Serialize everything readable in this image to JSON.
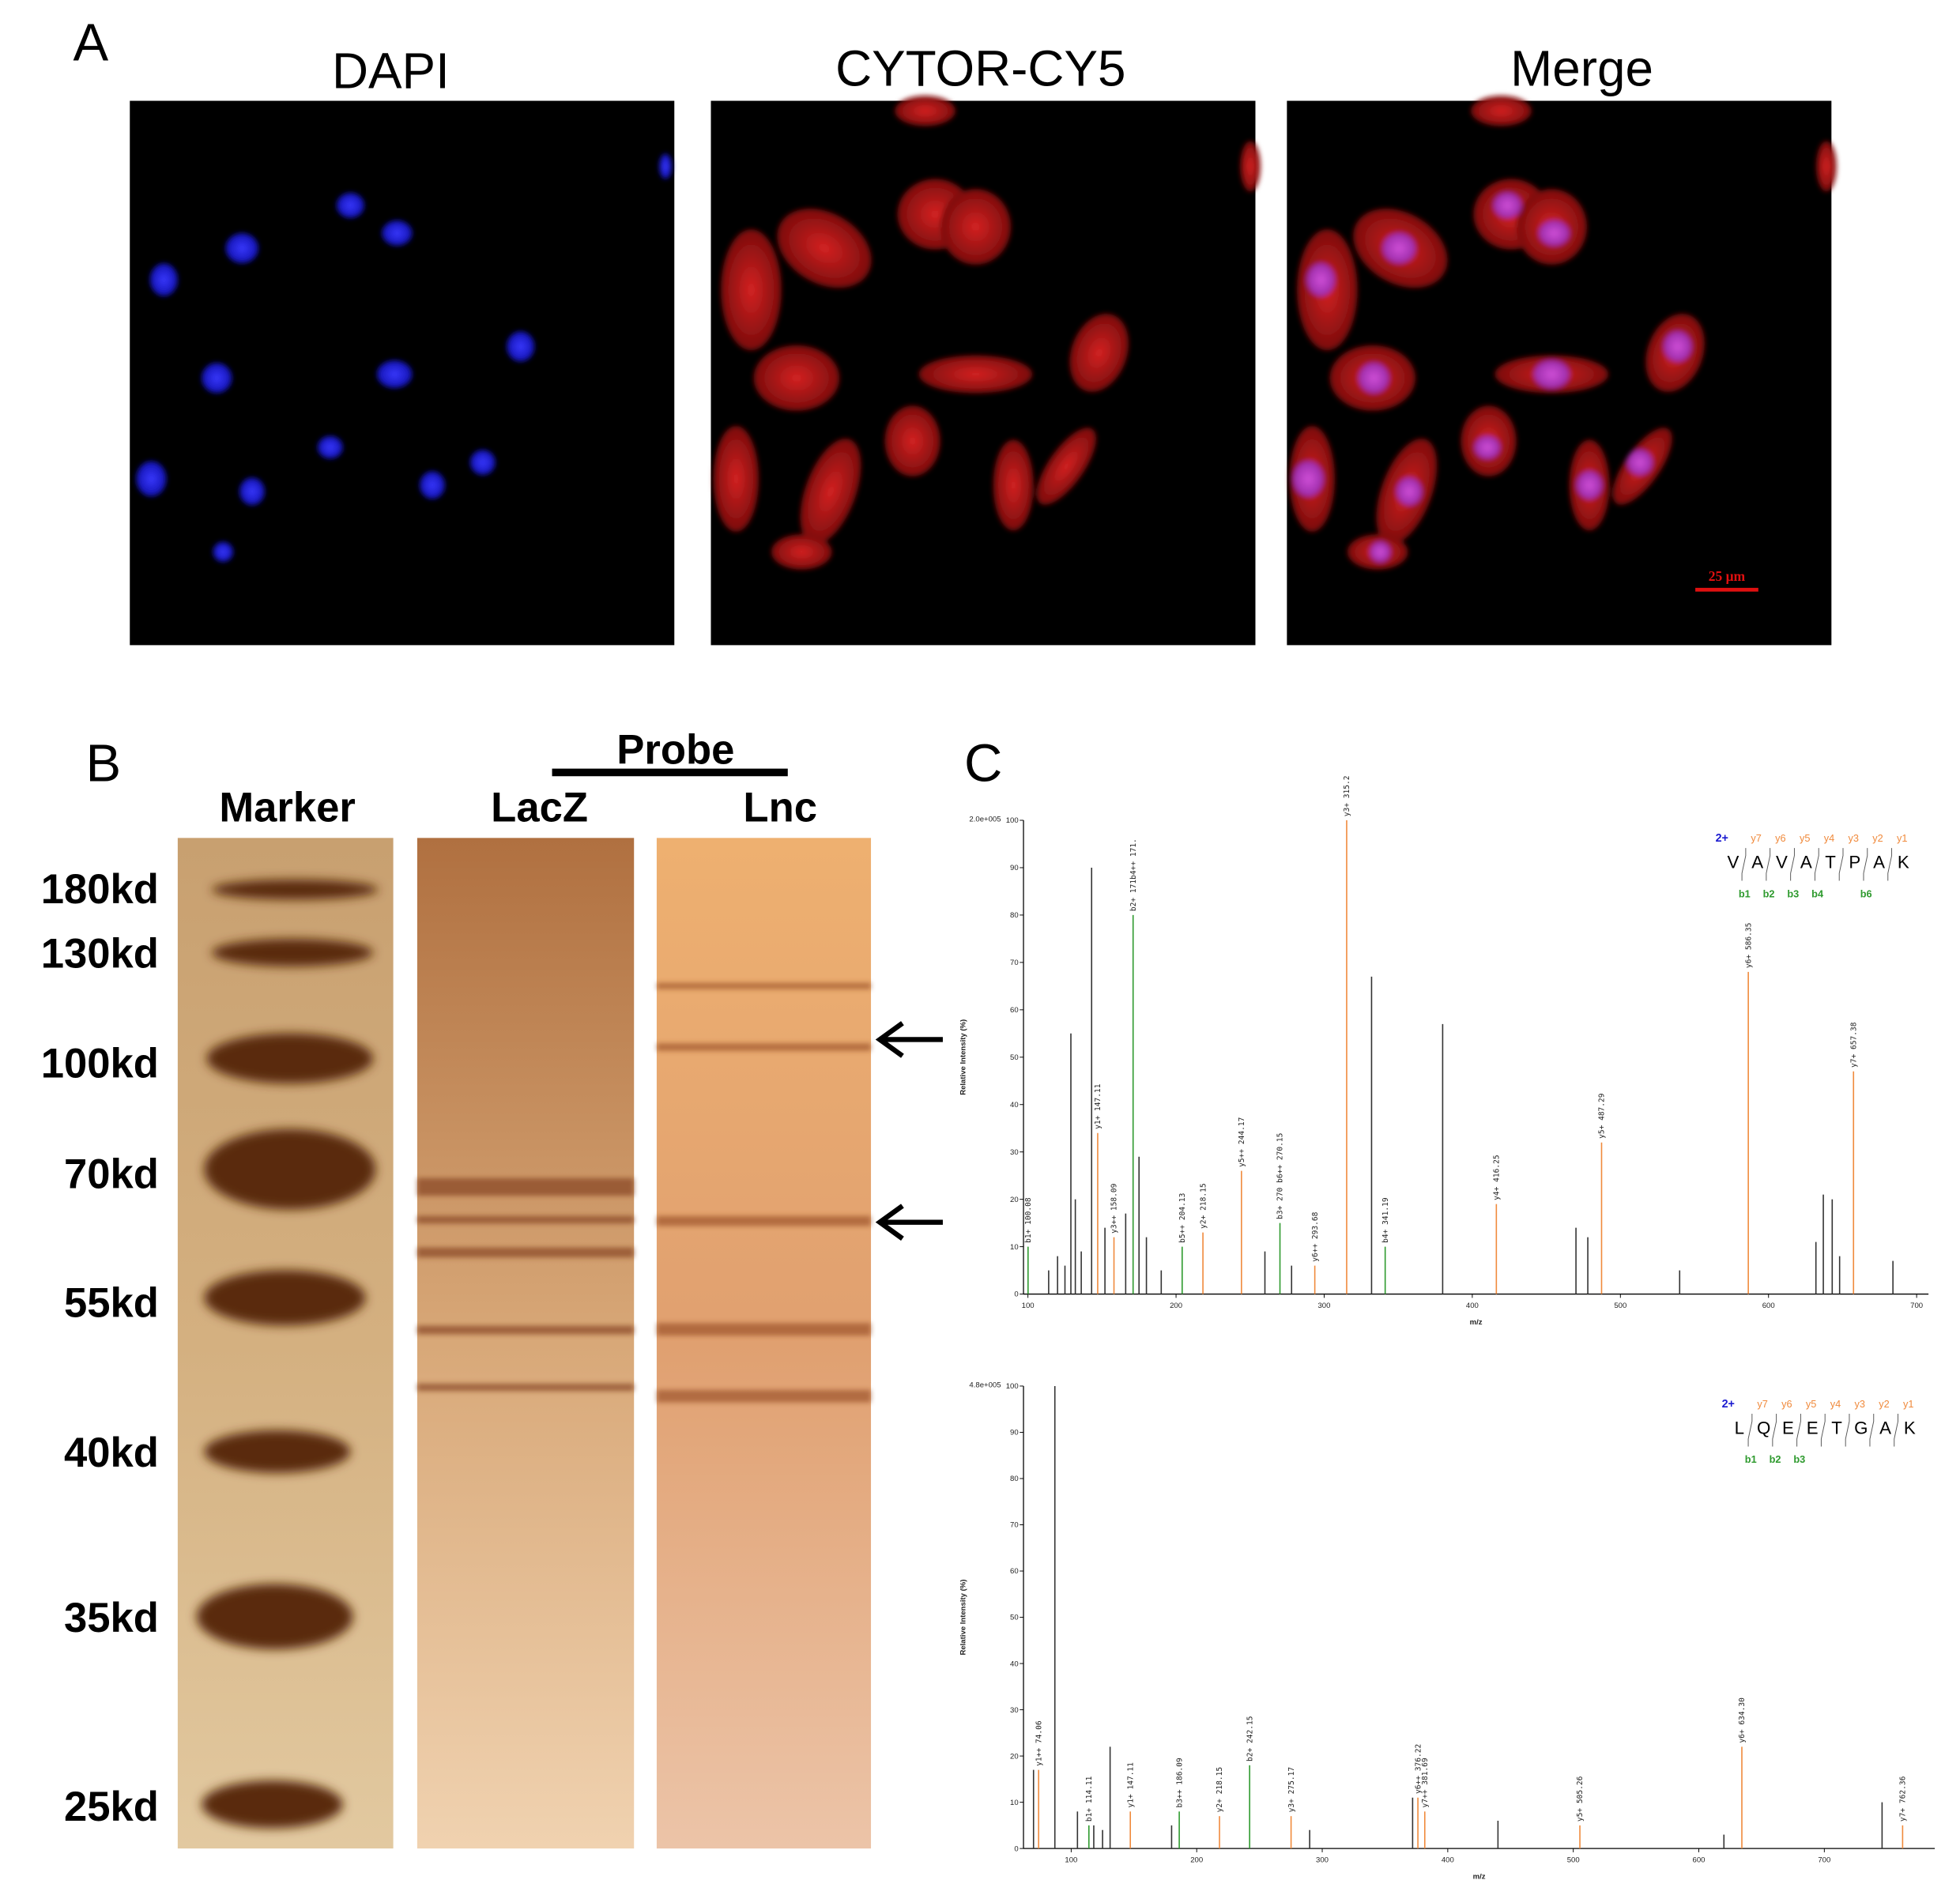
{
  "panel_a": {
    "label": "A",
    "images": [
      {
        "title": "DAPI"
      },
      {
        "title": "CYTOR-CY5"
      },
      {
        "title": "Merge"
      }
    ],
    "scale_bar": "25 μm"
  },
  "panel_b": {
    "label": "B",
    "probe": "Probe",
    "lanes": [
      "Marker",
      "LacZ",
      "Lnc"
    ],
    "markers": [
      "180kd",
      "130kd",
      "100kd",
      "70kd",
      "55kd",
      "40kd",
      "35kd",
      "25kd"
    ]
  },
  "panel_c": {
    "label": "C",
    "spectra": [
      {
        "type": "spectrum",
        "scale": "2.0e+005",
        "xlabel": "m/z",
        "ylabel": "Relative Intensity (%)",
        "xlim": [
          97,
          708
        ],
        "ylim": [
          0,
          100
        ],
        "xticks": [
          100,
          200,
          300,
          400,
          500,
          600,
          700
        ],
        "yticks": [
          0,
          10,
          20,
          30,
          40,
          50,
          60,
          70,
          80,
          90,
          100
        ],
        "charge": "2+",
        "sequence": [
          "V",
          "A",
          "V",
          "A",
          "T",
          "P",
          "A",
          "K"
        ],
        "y_ions": [
          null,
          "y7",
          "y6",
          "y5",
          "y4",
          "y3",
          "y2",
          "y1"
        ],
        "b_ions": [
          "b1",
          "b2",
          "b3",
          "b4",
          null,
          "b6",
          null,
          null
        ],
        "series": [
          {
            "color": "#333333",
            "x": [
              114,
              120,
              125,
              129,
              132,
              136,
              143,
              152,
              166,
              175,
              180,
              190,
              260,
              278,
              332,
              380,
              470,
              478,
              540,
              632,
              637,
              643,
              648,
              684
            ],
            "values": [
              5,
              8,
              6,
              55,
              20,
              9,
              90,
              14,
              17,
              29,
              12,
              5,
              9,
              6,
              67,
              57,
              14,
              12,
              5,
              11,
              21,
              20,
              8,
              7
            ]
          },
          {
            "color": "#f08a3c",
            "x": [
              147.11,
              158.09,
              218.15,
              244.17,
              293.68,
              315.2,
              416.25,
              487.29,
              586.35,
              657.38
            ],
            "values": [
              34,
              12,
              13,
              26,
              6,
              100,
              19,
              32,
              68,
              47
            ],
            "labels": [
              "y1+ 147.11",
              "y3++ 158.09",
              "y2+ 218.15",
              "y5++ 244.17",
              "y6++ 293.68",
              "y3+ 315.2",
              "y4+ 416.25",
              "y5+ 487.29",
              "y6+ 586.35",
              "y7+ 657.38"
            ]
          },
          {
            "color": "#2e9a2e",
            "x": [
              100.08,
              171,
              204.13,
              270.15,
              341.19
            ],
            "values": [
              10,
              80,
              10,
              15,
              10
            ],
            "labels": [
              "b1+ 100.08",
              "b2+ 171b4++ 171.",
              "b5++ 204.13",
              "b3+ 270 b6++ 270.15",
              "b4+ 341.19"
            ]
          }
        ]
      },
      {
        "type": "spectrum",
        "scale": "4.8e+005",
        "xlabel": "m/z",
        "ylabel": "Relative Intensity (%)",
        "xlim": [
          62,
          788
        ],
        "ylim": [
          0,
          100
        ],
        "xticks": [
          100,
          200,
          300,
          400,
          500,
          600,
          700
        ],
        "yticks": [
          0,
          10,
          20,
          30,
          40,
          50,
          60,
          70,
          80,
          90,
          100
        ],
        "charge": "2+",
        "sequence": [
          "L",
          "Q",
          "E",
          "E",
          "T",
          "G",
          "A",
          "K"
        ],
        "y_ions": [
          null,
          "y7",
          "y6",
          "y5",
          "y4",
          "y3",
          "y2",
          "y1"
        ],
        "b_ions": [
          "b1",
          "b2",
          "b3",
          null,
          null,
          null,
          null,
          null
        ],
        "series": [
          {
            "color": "#333333",
            "x": [
              70,
              87,
              105,
              118,
              125,
              131,
              180,
              290,
              372,
              440,
              620,
              746
            ],
            "values": [
              17,
              100,
              8,
              5,
              4,
              22,
              5,
              4,
              11,
              6,
              3,
              10
            ]
          },
          {
            "color": "#f08a3c",
            "x": [
              74.06,
              147.11,
              218.15,
              275.17,
              376.22,
              381.69,
              505.26,
              634.3,
              762.36
            ],
            "values": [
              17,
              8,
              7,
              7,
              11,
              8,
              5,
              22,
              5
            ],
            "labels": [
              "y1++ 74.06",
              "y1+ 147.11",
              "y2+ 218.15",
              "y3+ 275.17",
              "y6++ 376.22",
              "y7++ 381.69",
              "y5+ 505.26",
              "y6+ 634.30",
              "y7+ 762.36"
            ]
          },
          {
            "color": "#2e9a2e",
            "x": [
              114.11,
              186.09,
              242.15
            ],
            "values": [
              5,
              8,
              18
            ],
            "labels": [
              "b1+ 114.11",
              "b3++ 186.09",
              "b2+ 242.15"
            ]
          }
        ]
      }
    ]
  }
}
